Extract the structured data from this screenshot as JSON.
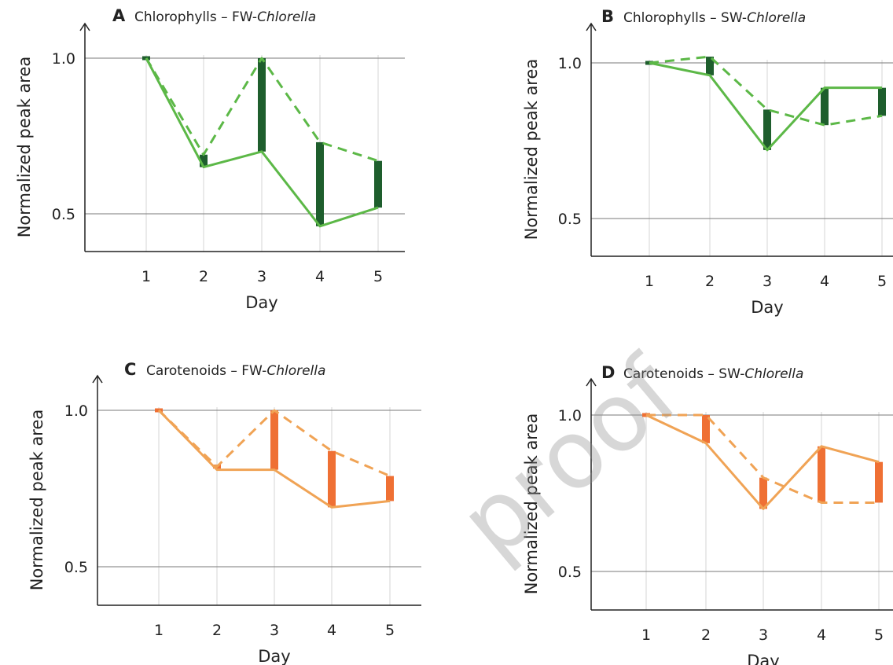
{
  "chart_data": [
    {
      "type": "line",
      "panel": "A",
      "title": {
        "prefix": "Chlorophylls – FW-",
        "italic": "Chlorella"
      },
      "xlabel": "Day",
      "ylabel": "Normalized peak area",
      "categories": [
        "1",
        "2",
        "3",
        "4",
        "5"
      ],
      "yticks": [
        "1.0",
        "0.5"
      ],
      "ytick_values": [
        1.0,
        0.5
      ],
      "ylim": [
        0.38,
        1.08
      ],
      "colors": {
        "line": "#5cb847",
        "bar": "#1e5e2d"
      },
      "series": [
        {
          "style": "solid",
          "values": [
            1.0,
            0.65,
            0.7,
            0.46,
            0.52
          ]
        },
        {
          "style": "dashed",
          "values": [
            1.0,
            0.69,
            1.0,
            0.73,
            0.67
          ]
        }
      ]
    },
    {
      "type": "line",
      "panel": "B",
      "title": {
        "prefix": "Chlorophylls – SW-",
        "italic": "Chlorella"
      },
      "xlabel": "Day",
      "ylabel": "Normalized peak area",
      "categories": [
        "1",
        "2",
        "3",
        "4",
        "5"
      ],
      "yticks": [
        "1.0",
        "0.5"
      ],
      "ytick_values": [
        1.0,
        0.5
      ],
      "ylim": [
        0.38,
        1.08
      ],
      "colors": {
        "line": "#5cb847",
        "bar": "#1e5e2d"
      },
      "series": [
        {
          "style": "solid",
          "values": [
            1.0,
            0.96,
            0.72,
            0.92,
            0.92
          ]
        },
        {
          "style": "dashed",
          "values": [
            1.0,
            1.02,
            0.85,
            0.8,
            0.83
          ]
        }
      ]
    },
    {
      "type": "line",
      "panel": "C",
      "title": {
        "prefix": "Carotenoids – FW-",
        "italic": "Chlorella"
      },
      "xlabel": "Day",
      "ylabel": "Normalized peak area",
      "categories": [
        "1",
        "2",
        "3",
        "4",
        "5"
      ],
      "yticks": [
        "1.0",
        "0.5"
      ],
      "ytick_values": [
        1.0,
        0.5
      ],
      "ylim": [
        0.38,
        1.08
      ],
      "colors": {
        "line": "#f0a355",
        "bar": "#ef7034"
      },
      "series": [
        {
          "style": "solid",
          "values": [
            1.0,
            0.81,
            0.81,
            0.69,
            0.71
          ]
        },
        {
          "style": "dashed",
          "values": [
            1.0,
            0.82,
            1.0,
            0.87,
            0.79
          ]
        }
      ]
    },
    {
      "type": "line",
      "panel": "D",
      "title": {
        "prefix": "Carotenoids – SW-",
        "italic": "Chlorella"
      },
      "xlabel": "Day",
      "ylabel": "Normalized peak area",
      "categories": [
        "1",
        "2",
        "3",
        "4",
        "5"
      ],
      "yticks": [
        "1.0",
        "0.5"
      ],
      "ytick_values": [
        1.0,
        0.5
      ],
      "ylim": [
        0.38,
        1.08
      ],
      "colors": {
        "line": "#f0a355",
        "bar": "#ef7034"
      },
      "series": [
        {
          "style": "solid",
          "values": [
            1.0,
            0.91,
            0.7,
            0.9,
            0.85
          ]
        },
        {
          "style": "dashed",
          "values": [
            1.0,
            1.0,
            0.8,
            0.72,
            0.72
          ]
        }
      ]
    }
  ],
  "watermark": "proof"
}
